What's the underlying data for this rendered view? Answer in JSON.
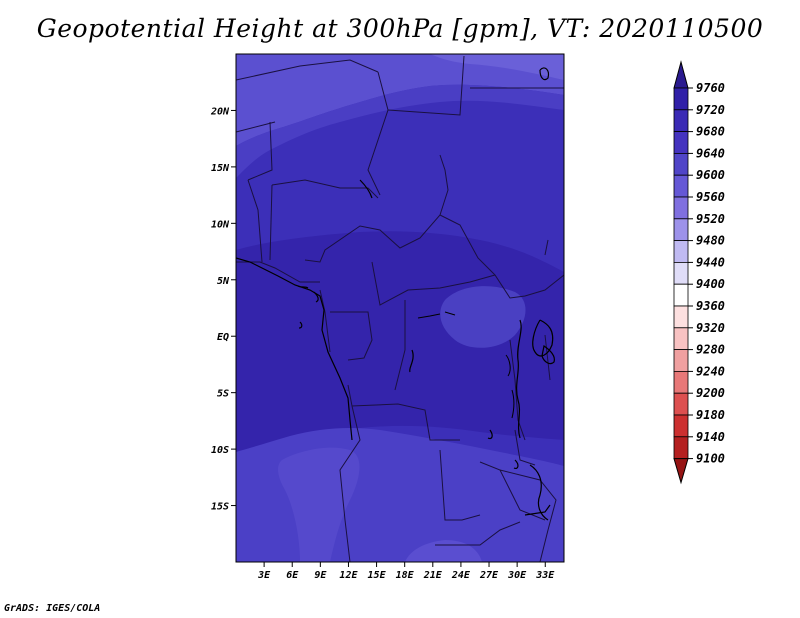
{
  "title": "Geopotential Height at 300hPa [gpm], VT: 2020110500",
  "credit": "GrADS: IGES/COLA",
  "map": {
    "lon_range": [
      0,
      35
    ],
    "lat_range": [
      -20,
      25
    ],
    "x_ticks": [
      {
        "lon": 3,
        "label": "3E"
      },
      {
        "lon": 6,
        "label": "6E"
      },
      {
        "lon": 9,
        "label": "9E"
      },
      {
        "lon": 12,
        "label": "12E"
      },
      {
        "lon": 15,
        "label": "15E"
      },
      {
        "lon": 18,
        "label": "18E"
      },
      {
        "lon": 21,
        "label": "21E"
      },
      {
        "lon": 24,
        "label": "24E"
      },
      {
        "lon": 27,
        "label": "27E"
      },
      {
        "lon": 30,
        "label": "30E"
      },
      {
        "lon": 33,
        "label": "33E"
      }
    ],
    "y_ticks": [
      {
        "lat": 20,
        "label": "20N"
      },
      {
        "lat": 15,
        "label": "15N"
      },
      {
        "lat": 10,
        "label": "10N"
      },
      {
        "lat": 5,
        "label": "5N"
      },
      {
        "lat": 0,
        "label": "EQ"
      },
      {
        "lat": -5,
        "label": "5S"
      },
      {
        "lat": -10,
        "label": "10S"
      },
      {
        "lat": -15,
        "label": "15S"
      }
    ]
  },
  "colorbar": {
    "levels": [
      9760,
      9720,
      9680,
      9640,
      9600,
      9560,
      9520,
      9480,
      9440,
      9400,
      9360,
      9320,
      9280,
      9240,
      9200,
      9180,
      9140,
      9100
    ],
    "labels": [
      "9760",
      "9720",
      "9680",
      "9640",
      "9600",
      "9560",
      "9520",
      "9480",
      "9440",
      "9400",
      "9360",
      "9320",
      "9280",
      "9240",
      "9200",
      "9180",
      "9140",
      "9100"
    ],
    "colors": [
      "#2a1a8f",
      "#3020a8",
      "#3a2ab5",
      "#4433bf",
      "#5045c8",
      "#6558d6",
      "#8070e0",
      "#9d92ea",
      "#c0baf2",
      "#e0ddf8",
      "#ffffff",
      "#fde0e0",
      "#f8c2c2",
      "#f0a0a0",
      "#e87878",
      "#dd5050",
      "#cc3030",
      "#b42020",
      "#961414"
    ]
  },
  "colors": {
    "field_main": "#3c2fb8",
    "field_high": "#3122a8",
    "field_low": "#4b40c6",
    "field_lowest": "#5549cc",
    "field_north": "#5b50d0",
    "border": "#1a1040"
  }
}
